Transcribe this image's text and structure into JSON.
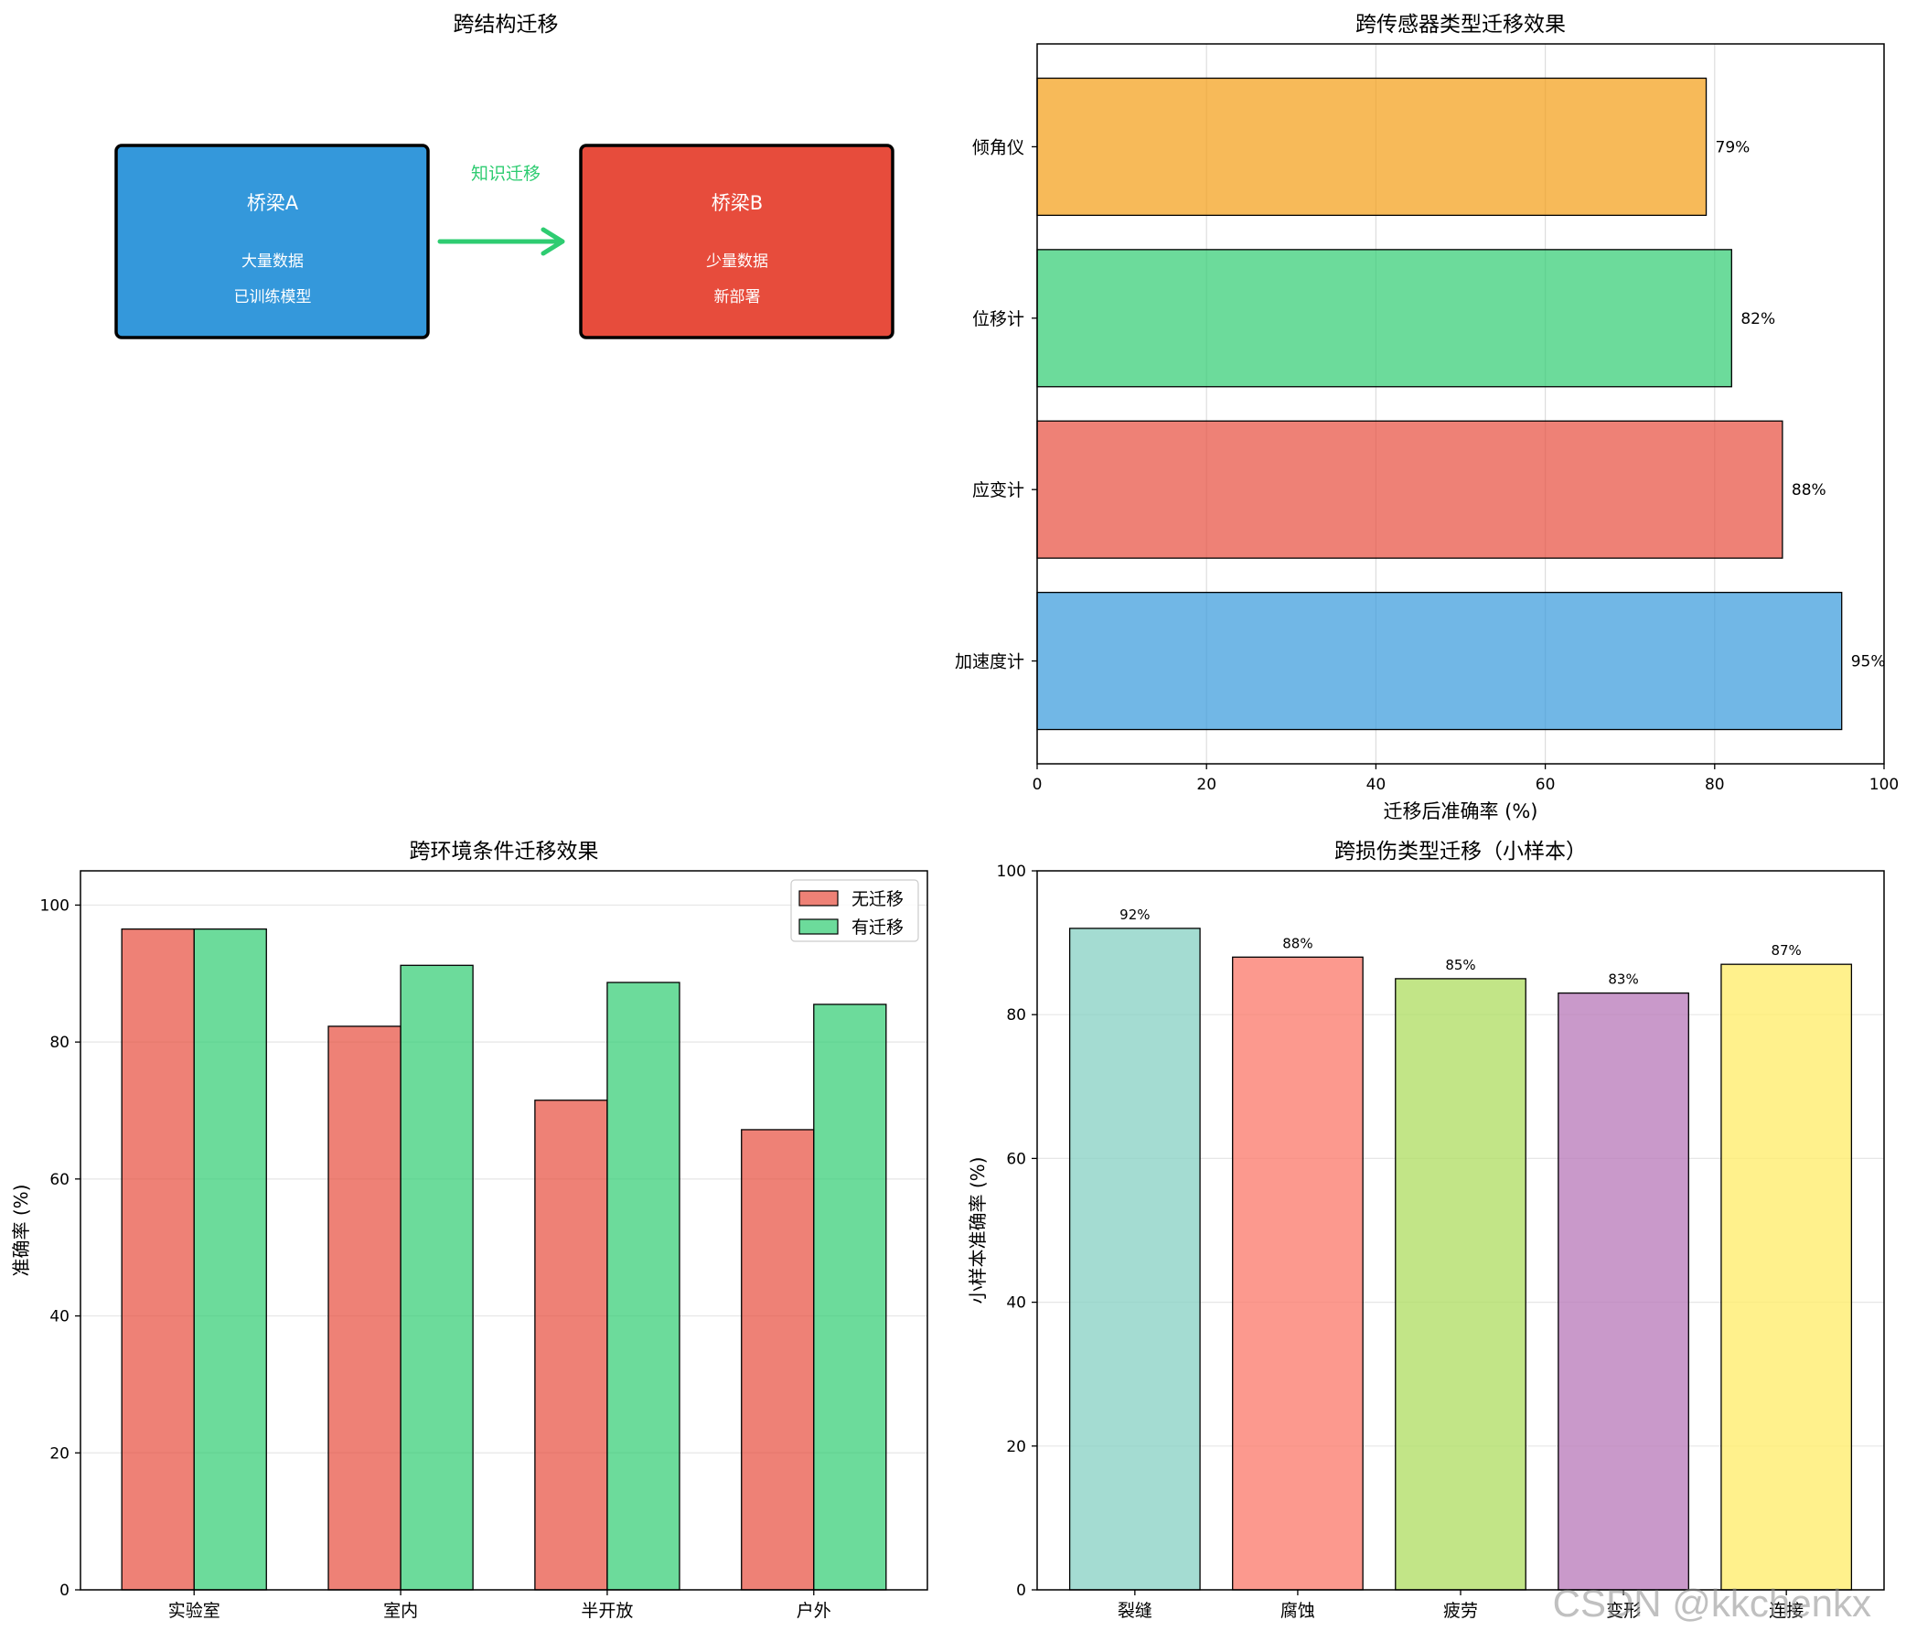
{
  "chart_data": [
    {
      "type": "diagram",
      "title": "跨结构迁移",
      "nodes": [
        {
          "label": "桥梁A",
          "lines": [
            "大量数据",
            "已训练模型"
          ],
          "color": "#3498db"
        },
        {
          "label": "桥梁B",
          "lines": [
            "少量数据",
            "新部署"
          ],
          "color": "#e74c3c"
        }
      ],
      "arrow_label": "知识迁移",
      "arrow_color": "#2ecc71"
    },
    {
      "type": "bar",
      "orientation": "horizontal",
      "title": "跨传感器类型迁移效果",
      "xlabel": "迁移后准确率 (%)",
      "ylabel": "",
      "categories": [
        "加速度计",
        "应变计",
        "位移计",
        "倾角仪"
      ],
      "values": [
        95,
        88,
        82,
        79
      ],
      "value_labels": [
        "95%",
        "88%",
        "82%",
        "79%"
      ],
      "colors": [
        "#3498db",
        "#e74c3c",
        "#2ecc71",
        "#f39c12"
      ],
      "xlim": [
        0,
        100
      ],
      "xticks": [
        0,
        20,
        40,
        60,
        80,
        100
      ],
      "grid": "x"
    },
    {
      "type": "bar",
      "title": "跨环境条件迁移效果",
      "xlabel": "",
      "ylabel": "准确率 (%)",
      "categories": [
        "实验室",
        "室内",
        "半开放",
        "户外"
      ],
      "series": [
        {
          "name": "无迁移",
          "values": [
            96.5,
            82.3,
            71.5,
            67.2
          ],
          "color": "#e74c3c"
        },
        {
          "name": "有迁移",
          "values": [
            96.5,
            91.2,
            88.7,
            85.5
          ],
          "color": "#2ecc71"
        }
      ],
      "ylim": [
        0,
        105
      ],
      "yticks": [
        0,
        20,
        40,
        60,
        80,
        100
      ],
      "legend": "top-right",
      "grid": "y"
    },
    {
      "type": "bar",
      "title": "跨损伤类型迁移（小样本）",
      "xlabel": "",
      "ylabel": "小样本准确率 (%)",
      "categories": [
        "裂缝",
        "腐蚀",
        "疲劳",
        "变形",
        "连接"
      ],
      "values": [
        92,
        88,
        85,
        83,
        87
      ],
      "value_labels": [
        "92%",
        "88%",
        "85%",
        "83%",
        "87%"
      ],
      "colors": [
        "#8dd3c7",
        "#fb8072",
        "#b3de69",
        "#bc80bd",
        "#ffed6f"
      ],
      "ylim": [
        0,
        100
      ],
      "yticks": [
        0,
        20,
        40,
        60,
        80,
        100
      ],
      "grid": "y"
    }
  ],
  "watermark": "CSDN @kkchenkx"
}
